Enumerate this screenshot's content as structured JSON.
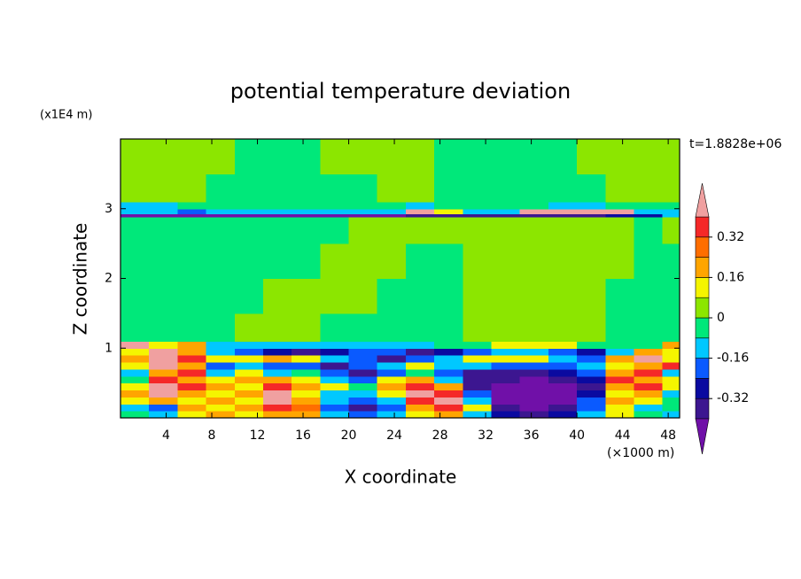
{
  "chart_data": {
    "type": "contour",
    "title": "potential temperature deviation",
    "x_label": "X coordinate",
    "y_label": "Z coordinate",
    "x_unit": "(×1000 m)",
    "y_unit": "(x1E4 m)",
    "time_label": "t=1.8828e+06",
    "xlim": [
      0,
      49
    ],
    "ylim": [
      0,
      4
    ],
    "xticks": [
      4,
      8,
      12,
      16,
      20,
      24,
      28,
      32,
      36,
      40,
      44,
      48
    ],
    "yticks": [
      1,
      2,
      3
    ],
    "x_edges": [
      0,
      2.5,
      5,
      7.5,
      10,
      12.5,
      15,
      17.5,
      20,
      22.5,
      25,
      27.5,
      30,
      32.5,
      35,
      37.5,
      40,
      42.5,
      45,
      47.5,
      49
    ],
    "y_edges": [
      0,
      0.1,
      0.2,
      0.3,
      0.4,
      0.5,
      0.6,
      0.7,
      0.8,
      0.9,
      1.0,
      1.1,
      1.5,
      2.0,
      2.5,
      2.88,
      2.93,
      3.0,
      3.1,
      3.5,
      4.0
    ],
    "z": [
      [
        -0.04,
        -0.12,
        0.12,
        0.2,
        0.12,
        0.2,
        0.2,
        -0.12,
        -0.2,
        -0.12,
        0.12,
        0.2,
        -0.12,
        -0.28,
        -0.36,
        -0.28,
        -0.12,
        0.12,
        -0.04,
        -0.12
      ],
      [
        -0.12,
        -0.2,
        0.2,
        0.12,
        0.2,
        0.36,
        0.28,
        -0.2,
        -0.36,
        -0.2,
        0.2,
        0.36,
        0.12,
        -0.36,
        -0.45,
        -0.36,
        -0.2,
        0.12,
        -0.12,
        -0.04
      ],
      [
        0.12,
        0.2,
        0.12,
        0.2,
        0.12,
        0.45,
        0.2,
        -0.12,
        -0.2,
        -0.12,
        0.36,
        0.45,
        -0.12,
        -0.45,
        -0.45,
        -0.45,
        -0.2,
        0.2,
        0.12,
        -0.04
      ],
      [
        0.2,
        0.45,
        0.2,
        0.12,
        0.2,
        0.45,
        0.12,
        -0.12,
        -0.12,
        0.12,
        0.45,
        0.36,
        -0.2,
        -0.45,
        -0.45,
        -0.45,
        -0.28,
        0.12,
        0.2,
        -0.12
      ],
      [
        0.12,
        0.45,
        0.36,
        0.2,
        0.12,
        0.36,
        0.2,
        0.12,
        -0.04,
        0.2,
        0.36,
        0.2,
        -0.36,
        -0.45,
        -0.45,
        -0.45,
        -0.36,
        0.2,
        0.36,
        0.12
      ],
      [
        -0.04,
        0.36,
        0.2,
        0.12,
        0.2,
        0.2,
        0.12,
        -0.12,
        -0.2,
        0.12,
        0.2,
        -0.12,
        -0.36,
        -0.36,
        -0.45,
        -0.36,
        -0.28,
        0.36,
        0.2,
        0.12
      ],
      [
        -0.12,
        0.2,
        0.36,
        -0.12,
        0.12,
        -0.12,
        -0.04,
        -0.2,
        -0.36,
        -0.2,
        -0.04,
        -0.2,
        -0.36,
        -0.36,
        -0.36,
        -0.28,
        -0.2,
        0.2,
        0.36,
        -0.12
      ],
      [
        0.12,
        0.45,
        0.2,
        -0.2,
        -0.12,
        -0.2,
        -0.2,
        -0.36,
        -0.2,
        -0.12,
        0.12,
        -0.12,
        -0.12,
        -0.2,
        -0.2,
        -0.2,
        -0.12,
        0.12,
        0.2,
        0.36
      ],
      [
        0.2,
        0.45,
        0.36,
        0.12,
        0.12,
        0.2,
        0.12,
        -0.12,
        -0.2,
        -0.36,
        -0.2,
        -0.12,
        0.12,
        0.12,
        0.12,
        -0.12,
        -0.2,
        0.2,
        0.45,
        0.12
      ],
      [
        0.12,
        0.45,
        0.2,
        -0.12,
        -0.2,
        -0.28,
        -0.36,
        -0.28,
        -0.2,
        -0.2,
        -0.36,
        -0.28,
        -0.2,
        -0.12,
        -0.12,
        -0.2,
        -0.28,
        -0.12,
        0.2,
        0.12
      ],
      [
        0.45,
        0.12,
        0.2,
        -0.12,
        -0.12,
        -0.12,
        -0.12,
        -0.12,
        -0.12,
        -0.12,
        -0.12,
        -0.04,
        -0.04,
        0.12,
        0.12,
        0.12,
        -0.04,
        -0.04,
        -0.04,
        0.2
      ],
      [
        -0.04,
        -0.04,
        -0.04,
        -0.04,
        0.04,
        0.04,
        0.04,
        -0.04,
        -0.04,
        -0.04,
        -0.04,
        -0.04,
        0.04,
        0.04,
        0.04,
        0.04,
        0.04,
        -0.04,
        -0.04,
        -0.04
      ],
      [
        -0.04,
        -0.04,
        -0.04,
        -0.04,
        -0.04,
        0.04,
        0.04,
        0.04,
        0.04,
        -0.04,
        -0.04,
        -0.04,
        0.04,
        0.04,
        0.04,
        0.04,
        0.04,
        -0.04,
        -0.04,
        -0.04
      ],
      [
        -0.04,
        -0.04,
        -0.04,
        -0.04,
        -0.04,
        -0.04,
        -0.04,
        0.04,
        0.04,
        0.04,
        -0.04,
        -0.04,
        0.04,
        0.04,
        0.04,
        0.04,
        0.04,
        0.04,
        -0.04,
        -0.04
      ],
      [
        -0.04,
        -0.04,
        -0.04,
        -0.04,
        -0.04,
        -0.04,
        -0.04,
        -0.04,
        0.04,
        0.04,
        0.04,
        0.04,
        0.04,
        0.04,
        0.04,
        0.04,
        0.04,
        0.04,
        -0.04,
        0.04
      ],
      [
        -0.45,
        -0.45,
        -0.45,
        -0.45,
        -0.45,
        -0.45,
        -0.45,
        -0.45,
        -0.45,
        -0.45,
        -0.36,
        -0.36,
        -0.36,
        -0.36,
        -0.36,
        -0.36,
        -0.36,
        -0.28,
        -0.28,
        -0.12
      ],
      [
        -0.12,
        -0.12,
        -0.2,
        -0.12,
        -0.12,
        -0.12,
        -0.12,
        -0.12,
        -0.12,
        -0.12,
        0.45,
        0.12,
        -0.12,
        -0.12,
        0.45,
        0.45,
        0.45,
        0.45,
        -0.12,
        -0.12
      ],
      [
        -0.12,
        -0.12,
        -0.04,
        -0.04,
        -0.04,
        -0.04,
        -0.04,
        -0.04,
        -0.04,
        -0.04,
        -0.12,
        -0.04,
        -0.04,
        -0.04,
        -0.04,
        -0.12,
        -0.12,
        -0.04,
        -0.04,
        -0.04
      ],
      [
        0.04,
        0.04,
        0.04,
        -0.04,
        -0.04,
        -0.04,
        -0.04,
        -0.04,
        -0.04,
        0.04,
        0.04,
        -0.04,
        -0.04,
        -0.04,
        -0.04,
        -0.04,
        -0.04,
        0.04,
        0.04,
        0.04
      ],
      [
        0.04,
        0.04,
        0.04,
        0.04,
        -0.04,
        -0.04,
        -0.04,
        0.04,
        0.04,
        0.04,
        0.04,
        -0.04,
        -0.04,
        -0.04,
        -0.04,
        -0.04,
        0.04,
        0.04,
        0.04,
        0.04
      ]
    ],
    "colorbar": {
      "levels": [
        -0.4,
        -0.32,
        -0.24,
        -0.16,
        -0.08,
        0,
        0.08,
        0.16,
        0.24,
        0.32,
        0.4
      ],
      "colors": [
        "#7010a8",
        "#3c1690",
        "#0a0aa0",
        "#0a5aff",
        "#00c8ff",
        "#00e87a",
        "#8ce600",
        "#f5f500",
        "#ffa500",
        "#ff6e00",
        "#f52828",
        "#f0a0a0"
      ],
      "ticks": [
        -0.32,
        -0.16,
        0,
        0.16,
        0.32
      ]
    }
  }
}
